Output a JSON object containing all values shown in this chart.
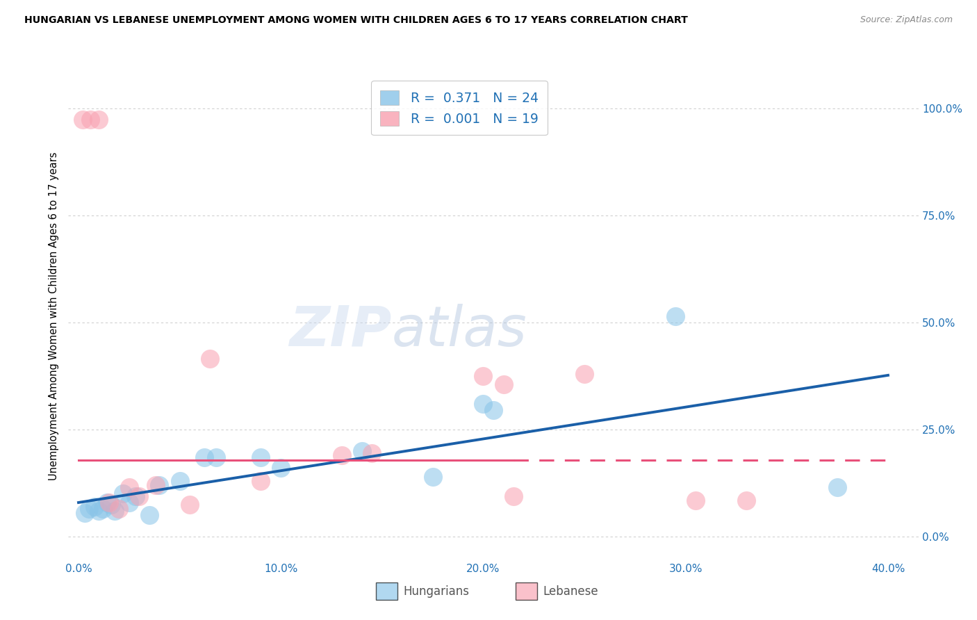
{
  "title": "HUNGARIAN VS LEBANESE UNEMPLOYMENT AMONG WOMEN WITH CHILDREN AGES 6 TO 17 YEARS CORRELATION CHART",
  "source": "Source: ZipAtlas.com",
  "ylabel": "Unemployment Among Women with Children Ages 6 to 17 years",
  "xlabel_ticks": [
    "0.0%",
    "10.0%",
    "20.0%",
    "30.0%",
    "40.0%"
  ],
  "xlabel_vals": [
    0.0,
    0.1,
    0.2,
    0.3,
    0.4
  ],
  "ylabel_ticks_right": [
    "100.0%",
    "75.0%",
    "50.0%",
    "25.0%",
    "0.0%"
  ],
  "ylabel_vals_right": [
    1.0,
    0.75,
    0.5,
    0.25,
    0.0
  ],
  "xlim": [
    -0.005,
    0.415
  ],
  "ylim": [
    -0.05,
    1.08
  ],
  "hungarian_color": "#88c4e8",
  "lebanese_color": "#f8a0b0",
  "trendline_hungarian_color": "#1a5fa8",
  "trendline_lebanese_color": "#e8507a",
  "watermark_zip": "ZIP",
  "watermark_atlas": "atlas",
  "legend_R_hungarian": "0.371",
  "legend_N_hungarian": "24",
  "legend_R_lebanese": "0.001",
  "legend_N_lebanese": "19",
  "hungarian_x": [
    0.003,
    0.005,
    0.008,
    0.01,
    0.012,
    0.014,
    0.016,
    0.018,
    0.022,
    0.025,
    0.028,
    0.035,
    0.04,
    0.05,
    0.062,
    0.068,
    0.09,
    0.1,
    0.14,
    0.175,
    0.2,
    0.205,
    0.295,
    0.375
  ],
  "hungarian_y": [
    0.055,
    0.065,
    0.07,
    0.06,
    0.065,
    0.08,
    0.075,
    0.06,
    0.1,
    0.08,
    0.095,
    0.05,
    0.12,
    0.13,
    0.185,
    0.185,
    0.185,
    0.16,
    0.2,
    0.14,
    0.31,
    0.295,
    0.515,
    0.115
  ],
  "lebanese_x": [
    0.002,
    0.006,
    0.01,
    0.015,
    0.02,
    0.025,
    0.03,
    0.038,
    0.055,
    0.065,
    0.09,
    0.13,
    0.145,
    0.2,
    0.21,
    0.215,
    0.25,
    0.305,
    0.33
  ],
  "lebanese_y": [
    0.975,
    0.975,
    0.975,
    0.08,
    0.065,
    0.115,
    0.095,
    0.12,
    0.075,
    0.415,
    0.13,
    0.19,
    0.195,
    0.375,
    0.355,
    0.095,
    0.38,
    0.085,
    0.085
  ],
  "background_color": "#ffffff",
  "grid_color": "#d0d0d0"
}
